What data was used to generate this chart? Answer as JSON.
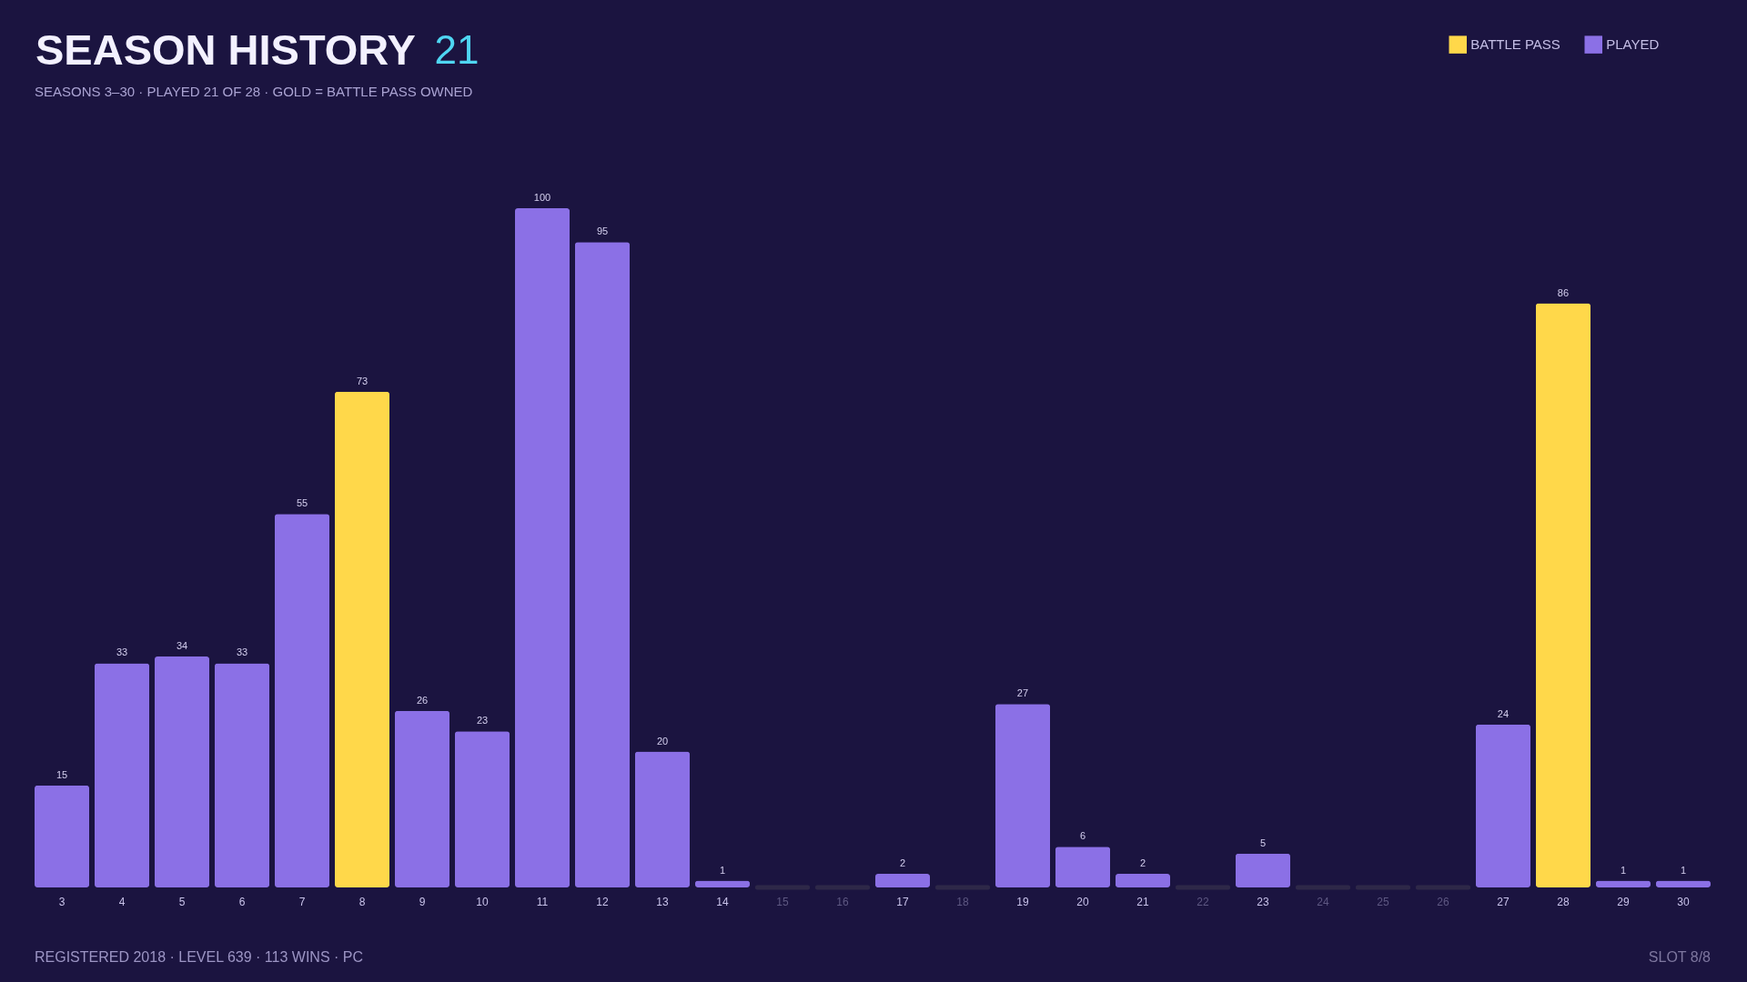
{
  "chart_data": {
    "type": "bar",
    "title": "SEASON HISTORY",
    "subtitle": "SEASONS 3–30 · PLAYED 21 OF 28 · GOLD = BATTLE PASS OWNED",
    "categories": [
      "3",
      "4",
      "5",
      "6",
      "7",
      "8",
      "9",
      "10",
      "11",
      "12",
      "13",
      "14",
      "15",
      "16",
      "17",
      "18",
      "19",
      "20",
      "21",
      "22",
      "23",
      "24",
      "25",
      "26",
      "27",
      "28",
      "29",
      "30"
    ],
    "series": [
      {
        "name": "BATTLE PASS",
        "color": "#ffd84a",
        "values": [
          null,
          null,
          null,
          null,
          null,
          73,
          null,
          null,
          null,
          null,
          null,
          null,
          null,
          null,
          null,
          null,
          null,
          null,
          null,
          null,
          null,
          null,
          null,
          null,
          null,
          86,
          null,
          null
        ],
        "value_labels": [
          null,
          null,
          null,
          null,
          null,
          "73",
          null,
          null,
          null,
          null,
          null,
          null,
          null,
          null,
          null,
          null,
          null,
          null,
          null,
          null,
          null,
          null,
          null,
          null,
          null,
          "86",
          null,
          null
        ]
      },
      {
        "name": "PLAYED",
        "color": "#8b70e6",
        "values": [
          15,
          33,
          34,
          33,
          55,
          null,
          26,
          23,
          100,
          95,
          20,
          1,
          null,
          null,
          2,
          null,
          27,
          6,
          2,
          null,
          5,
          null,
          null,
          null,
          24,
          null,
          1,
          1
        ],
        "value_labels": [
          "15",
          "33",
          "34",
          "33",
          "55",
          null,
          "26",
          "23",
          "100",
          "95",
          "20",
          "1",
          null,
          null,
          "2",
          null,
          "27",
          "6",
          "2",
          null,
          "5",
          null,
          null,
          null,
          "24",
          null,
          "1",
          "1"
        ]
      },
      {
        "color": "#2e2848",
        "values": [
          null,
          null,
          null,
          null,
          null,
          null,
          null,
          null,
          null,
          null,
          null,
          null,
          0,
          0,
          null,
          0,
          null,
          null,
          null,
          0,
          null,
          0,
          0,
          0,
          null,
          null,
          null,
          null
        ]
      }
    ],
    "legend": "top right",
    "annotations": [
      "21",
      "REGISTERED 2018 · LEVEL 639 · 113 WINS · PC",
      "SLOT 8/8"
    ]
  }
}
